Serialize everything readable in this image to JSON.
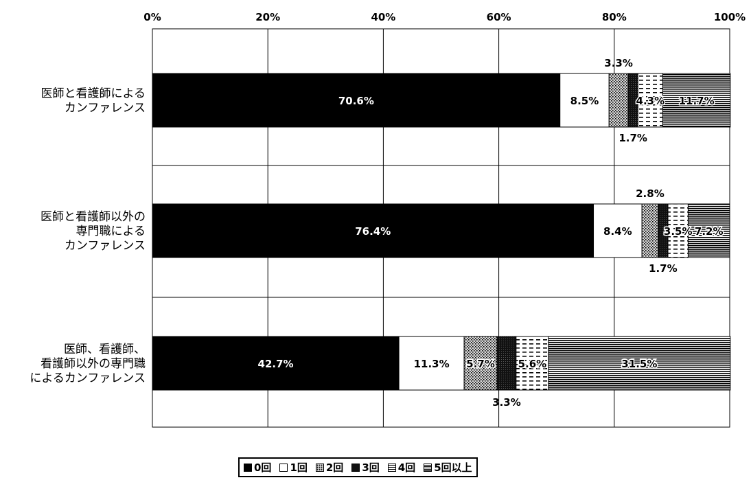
{
  "chart_data": {
    "type": "bar",
    "orientation": "horizontal",
    "stacked": true,
    "percent": true,
    "title": "",
    "xlabel": "",
    "ylabel": "",
    "xlim": [
      0,
      100
    ],
    "x_ticks": [
      "0%",
      "20%",
      "40%",
      "60%",
      "80%",
      "100%"
    ],
    "grid": true,
    "legend_position": "bottom",
    "categories": [
      "医師と看護師による\nカンファレンス",
      "医師と看護師以外の\n専門職による\nカンファレンス",
      "医師、看護師、\n看護師以外の専門職\nによるカンファレンス"
    ],
    "series": [
      {
        "name": "0回",
        "values": [
          70.6,
          76.4,
          42.7
        ],
        "labels": [
          "70.6%",
          "76.4%",
          "42.7%"
        ],
        "color": "#000000",
        "pattern": "solid"
      },
      {
        "name": "1回",
        "values": [
          8.5,
          8.4,
          11.3
        ],
        "labels": [
          "8.5%",
          "8.4%",
          "11.3%"
        ],
        "color": "#ffffff",
        "pattern": "white"
      },
      {
        "name": "2回",
        "values": [
          3.3,
          2.8,
          5.7
        ],
        "labels": [
          "3.3%",
          "2.8%",
          "5.7%"
        ],
        "color": "#9a9a9a",
        "pattern": "dots"
      },
      {
        "name": "3回",
        "values": [
          1.7,
          1.7,
          3.3
        ],
        "labels": [
          "1.7%",
          "1.7%",
          "3.3%"
        ],
        "color": "#111111",
        "pattern": "dark"
      },
      {
        "name": "4回",
        "values": [
          4.3,
          3.5,
          5.6
        ],
        "labels": [
          "4.3%",
          "3.5%",
          "5.6%"
        ],
        "color": "#ffffff",
        "pattern": "dashes"
      },
      {
        "name": "5回以上",
        "values": [
          11.7,
          7.2,
          31.5
        ],
        "labels": [
          "11.7%",
          "7.2%",
          "31.5%"
        ],
        "color": "#777777",
        "pattern": "hlines"
      }
    ]
  }
}
